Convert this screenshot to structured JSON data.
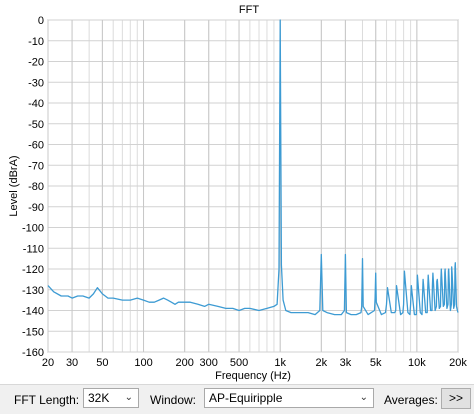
{
  "chart_data": {
    "type": "line",
    "title": "FFT",
    "xlabel": "Frequency (Hz)",
    "ylabel": "Level (dBrA)",
    "x_scale": "log",
    "xlim": [
      20,
      20000
    ],
    "ylim": [
      -160,
      0
    ],
    "x_ticks": [
      {
        "value": 20,
        "label": "20"
      },
      {
        "value": 30,
        "label": "30"
      },
      {
        "value": 50,
        "label": "50"
      },
      {
        "value": 100,
        "label": "100"
      },
      {
        "value": 200,
        "label": "200"
      },
      {
        "value": 300,
        "label": "300"
      },
      {
        "value": 500,
        "label": "500"
      },
      {
        "value": 1000,
        "label": "1k"
      },
      {
        "value": 2000,
        "label": "2k"
      },
      {
        "value": 3000,
        "label": "3k"
      },
      {
        "value": 5000,
        "label": "5k"
      },
      {
        "value": 10000,
        "label": "10k"
      },
      {
        "value": 20000,
        "label": "20k"
      }
    ],
    "y_ticks": [
      0,
      -10,
      -20,
      -30,
      -40,
      -50,
      -60,
      -70,
      -80,
      -90,
      -100,
      -110,
      -120,
      -130,
      -140,
      -150,
      -160
    ],
    "grid": true,
    "line_color": "#3d9bd3",
    "series": [
      {
        "x": [
          20,
          22,
          25,
          28,
          30,
          33,
          36,
          40,
          43,
          46,
          50,
          55,
          60,
          70,
          80,
          90,
          100,
          110,
          120,
          130,
          140,
          150,
          160,
          170,
          180,
          200,
          220,
          250,
          280,
          300,
          350,
          400,
          450,
          500,
          550,
          600,
          700,
          800,
          900,
          950,
          980,
          1000,
          1020,
          1050,
          1100,
          1200,
          1400,
          1600,
          1800,
          1950,
          2000,
          2050,
          2200,
          2500,
          2800,
          2950,
          3000,
          3050,
          3300,
          3600,
          3900,
          3950,
          4000,
          4050,
          4400,
          4900,
          4950,
          5000,
          5050,
          5500,
          5900,
          6000,
          6100,
          6500,
          6900,
          7000,
          7100,
          7600,
          7900,
          8000,
          8100,
          8600,
          8900,
          9000,
          9100,
          9600,
          9900,
          10000,
          10100,
          10600,
          10900,
          11000,
          11100,
          11600,
          11900,
          12000,
          12100,
          12600,
          12900,
          13000,
          13100,
          13600,
          13900,
          14000,
          14100,
          14600,
          14900,
          15000,
          15100,
          15600,
          15900,
          16000,
          16100,
          16600,
          16900,
          17000,
          17100,
          17600,
          17900,
          18000,
          18100,
          18600,
          18900,
          19000,
          19100,
          19500,
          19800,
          20000
        ],
        "y": [
          -128,
          -131,
          -133,
          -133,
          -134,
          -133,
          -133,
          -134,
          -132,
          -129,
          -132,
          -134,
          -134,
          -135,
          -135,
          -134,
          -135,
          -136,
          -136,
          -135,
          -134,
          -135,
          -136,
          -137,
          -136,
          -136,
          -136,
          -137,
          -138,
          -137,
          -138,
          -139,
          -139,
          -140,
          -139,
          -139,
          -140,
          -139,
          -138,
          -137,
          -120,
          0,
          -118,
          -135,
          -140,
          -141,
          -141,
          -141,
          -142,
          -140,
          -113,
          -140,
          -141,
          -142,
          -142,
          -140,
          -113,
          -141,
          -142,
          -142,
          -141,
          -138,
          -115,
          -138,
          -142,
          -140,
          -134,
          -122,
          -136,
          -142,
          -141,
          -137,
          -129,
          -141,
          -141,
          -140,
          -128,
          -142,
          -141,
          -137,
          -121,
          -141,
          -142,
          -137,
          -128,
          -142,
          -142,
          -135,
          -123,
          -141,
          -142,
          -133,
          -125,
          -141,
          -141,
          -130,
          -123,
          -140,
          -140,
          -128,
          -122,
          -140,
          -138,
          -126,
          -125,
          -139,
          -138,
          -125,
          -120,
          -138,
          -137,
          -122,
          -120,
          -139,
          -137,
          -121,
          -120,
          -140,
          -137,
          -119,
          -122,
          -139,
          -137,
          -119,
          -117,
          -138,
          -140,
          -141
        ]
      }
    ]
  },
  "controls": {
    "fft_length_label": "FFT Length:",
    "fft_length_value": "32K",
    "window_label": "Window:",
    "window_value": "AP-Equiripple",
    "averages_label": "Averages:",
    "more_button": ">>"
  }
}
